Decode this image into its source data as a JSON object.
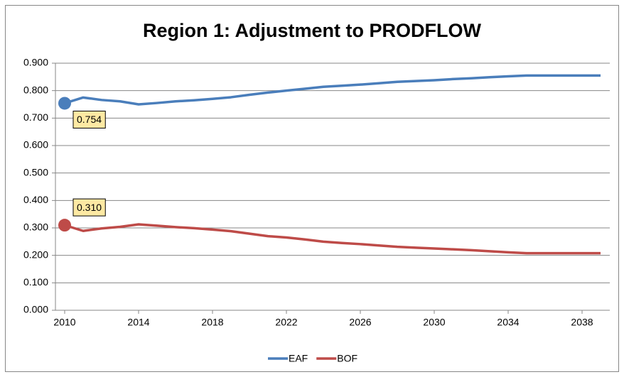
{
  "chart_data": {
    "type": "line",
    "title": "Region 1: Adjustment to PRODFLOW",
    "x": [
      2010,
      2011,
      2012,
      2013,
      2014,
      2015,
      2016,
      2017,
      2018,
      2019,
      2020,
      2021,
      2022,
      2023,
      2024,
      2025,
      2026,
      2027,
      2028,
      2029,
      2030,
      2031,
      2032,
      2033,
      2034,
      2035,
      2036,
      2037,
      2038,
      2039
    ],
    "series": [
      {
        "name": "EAF",
        "color": "#4a7ebb",
        "values": [
          0.754,
          0.775,
          0.766,
          0.761,
          0.75,
          0.755,
          0.761,
          0.765,
          0.77,
          0.776,
          0.785,
          0.793,
          0.8,
          0.807,
          0.814,
          0.818,
          0.822,
          0.827,
          0.832,
          0.835,
          0.838,
          0.842,
          0.845,
          0.849,
          0.852,
          0.855,
          0.855,
          0.855,
          0.855,
          0.855
        ],
        "value_labels": [
          "0.754",
          null,
          null,
          null,
          null,
          null,
          null,
          null,
          null,
          null,
          null,
          null,
          null,
          null,
          null,
          null,
          null,
          null,
          null,
          null,
          null,
          null,
          null,
          null,
          null,
          null,
          null,
          null,
          null,
          null
        ]
      },
      {
        "name": "BOF",
        "color": "#be4b48",
        "values": [
          0.31,
          0.289,
          0.298,
          0.304,
          0.313,
          0.308,
          0.303,
          0.299,
          0.294,
          0.288,
          0.279,
          0.27,
          0.265,
          0.258,
          0.25,
          0.245,
          0.241,
          0.236,
          0.231,
          0.228,
          0.225,
          0.222,
          0.219,
          0.215,
          0.211,
          0.208,
          0.208,
          0.208,
          0.208,
          0.208
        ],
        "value_labels": [
          "0.310",
          null,
          null,
          null,
          null,
          null,
          null,
          null,
          null,
          null,
          null,
          null,
          null,
          null,
          null,
          null,
          null,
          null,
          null,
          null,
          null,
          null,
          null,
          null,
          null,
          null,
          null,
          null,
          null,
          null
        ]
      }
    ],
    "xlim": [
      2009.5,
      2039.5
    ],
    "xticks": [
      2010,
      2014,
      2018,
      2022,
      2026,
      2030,
      2034,
      2038
    ],
    "ylim": [
      0,
      0.9
    ],
    "yticks": [
      {
        "value": 0,
        "label": "0.000"
      },
      {
        "value": 0.1,
        "label": "0.100"
      },
      {
        "value": 0.2,
        "label": "0.200"
      },
      {
        "value": 0.3,
        "label": "0.300"
      },
      {
        "value": 0.4,
        "label": "0.400"
      },
      {
        "value": 0.5,
        "label": "0.500"
      },
      {
        "value": 0.6,
        "label": "0.600"
      },
      {
        "value": 0.7,
        "label": "0.700"
      },
      {
        "value": 0.8,
        "label": "0.800"
      },
      {
        "value": 0.9,
        "label": "0.900"
      }
    ],
    "grid": true,
    "legend": "bottom"
  }
}
